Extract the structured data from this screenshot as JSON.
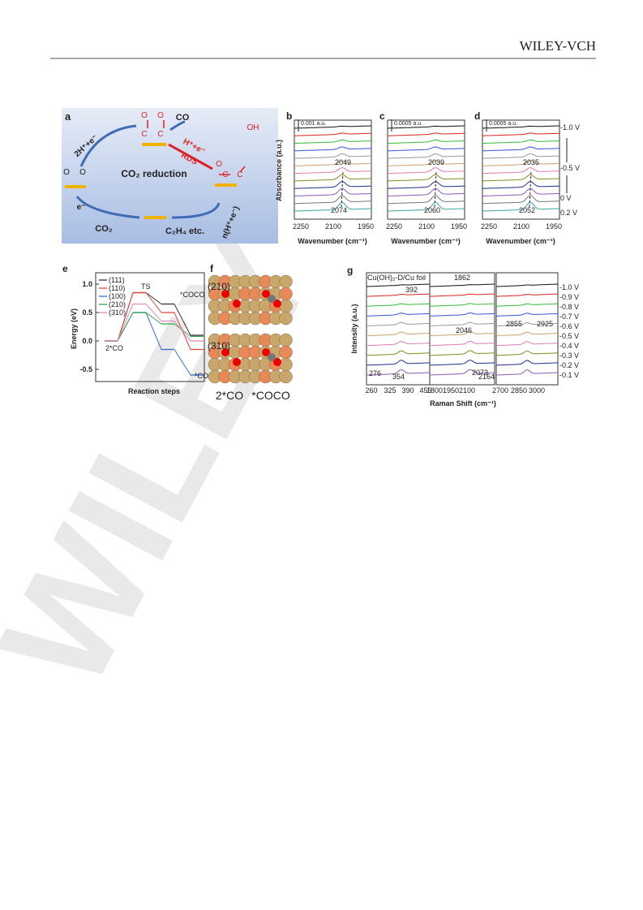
{
  "header": {
    "publisher": "WILEY-VCH"
  },
  "watermark": "WILEY",
  "figure": {
    "panel_a": {
      "label": "a",
      "texts": [
        "CO",
        "CO₂ reduction",
        "H⁺+e⁻",
        "RDS",
        "OH",
        "2H⁺+e⁻",
        "e⁻",
        "CO₂",
        "C₂H₄ etc.",
        "n(H⁺+e⁻)",
        "O",
        "O",
        "C",
        "C",
        "O",
        "C",
        "C",
        "O",
        "O"
      ]
    },
    "absorbance_label": "Absorbance (a.u.)",
    "panel_b": {
      "label": "b",
      "scale": "0.001 a.u.",
      "peak_top": "2049",
      "peak_bottom": "2074",
      "xticks": [
        "2250",
        "2100",
        "1950"
      ],
      "xlabel": "Wavenumber (cm⁻¹)"
    },
    "panel_c": {
      "label": "c",
      "scale": "0.0005 a.u.",
      "peak_top": "2039",
      "peak_bottom": "2060",
      "xticks": [
        "2250",
        "2100",
        "1950"
      ],
      "xlabel": "Wavenumber (cm⁻¹)"
    },
    "panel_d": {
      "label": "d",
      "scale": "0.0005 a.u.",
      "peak_top": "2035",
      "peak_bottom": "2052",
      "xticks": [
        "2250",
        "2100",
        "1950"
      ],
      "xlabel": "Wavenumber (cm⁻¹)",
      "potentials": [
        "-1.0 V",
        "-0.5 V",
        "0 V",
        "0.2 V"
      ]
    },
    "panel_e": {
      "label": "e",
      "ylabel": "Energy (eV)",
      "xlabel": "Reaction steps",
      "categories": [
        "2*CO",
        "TS",
        "*COCO",
        "*COCOH"
      ],
      "ylim": [
        -0.7,
        1.1
      ],
      "yticks": [
        {
          "value": 1,
          "label": "1.0"
        },
        0.5,
        {
          "value": 0,
          "label": "0.0"
        },
        -0.5
      ],
      "series": [
        {
          "name": "(111)",
          "color": "#333333",
          "values": [
            0,
            0.85,
            0.65,
            0.1
          ]
        },
        {
          "name": "(110)",
          "color": "#e8483a",
          "values": [
            0,
            0.85,
            0.5,
            -0.15
          ]
        },
        {
          "name": "(100)",
          "color": "#3b6fd6",
          "values": [
            0,
            0.5,
            -0.15,
            -0.6
          ]
        },
        {
          "name": "(210)",
          "color": "#2ea84a",
          "values": [
            0,
            0.5,
            0.3,
            0.08
          ]
        },
        {
          "name": "(310)",
          "color": "#e48ab6",
          "values": [
            0,
            0.65,
            0.35,
            0
          ]
        }
      ]
    },
    "panel_f": {
      "label": "f",
      "facets": [
        "(210)",
        "(310)"
      ],
      "states": [
        "2*CO",
        "*COCO"
      ]
    },
    "panel_g": {
      "label": "g",
      "sample": "Cu(OH)₂-D/Cu foil",
      "peaks": [
        "392",
        "1862",
        "2046",
        "2855",
        "2925",
        "276",
        "354",
        "2073",
        "2164"
      ],
      "xticks": [
        "260",
        "325",
        "390",
        "455",
        "1800",
        "1950",
        "2100",
        "2700",
        "2850",
        "3000"
      ],
      "potentials": [
        "-1.0 V",
        "-0.9 V",
        "-0.8 V",
        "-0.7 V",
        "-0.6 V",
        "-0.5 V",
        "-0.4 V",
        "-0.3 V",
        "-0.2 V",
        "-0.1 V"
      ],
      "ylabel": "Intensity (a.u.)",
      "xlabel": "Raman Shift (cm⁻¹)"
    }
  }
}
